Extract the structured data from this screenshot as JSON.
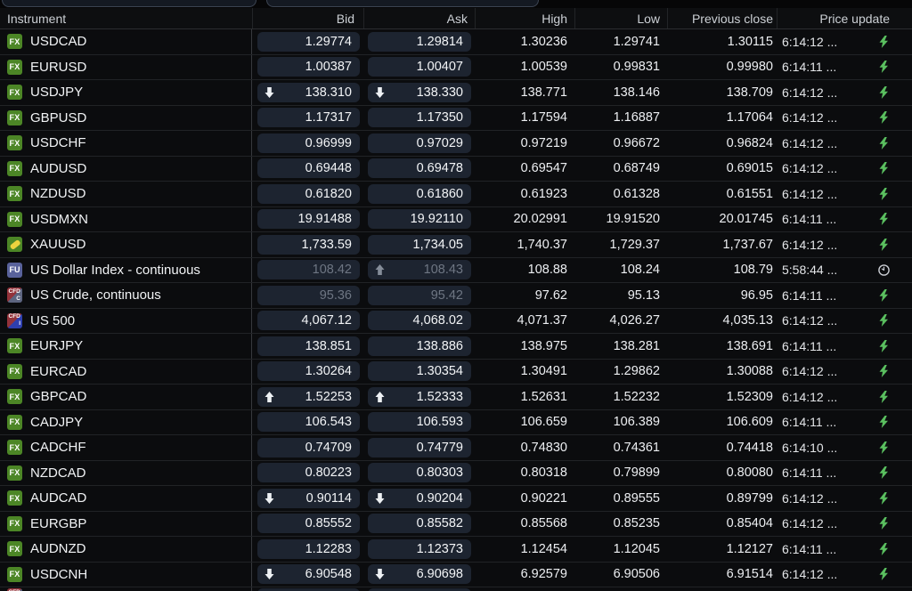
{
  "header": {
    "columns": [
      "Instrument",
      "Bid",
      "Ask",
      "High",
      "Low",
      "Previous close",
      "Price update"
    ]
  },
  "icon_labels": {
    "fx": "FX",
    "futures": "FU",
    "cfd": "CFD",
    "cfd_commodity_suffix": "C",
    "cfd_index_suffix": "I"
  },
  "colors": {
    "fx_icon_green": "#4c8626",
    "gold_bar": "#ecd23e",
    "futures_icon_blue": "#59629b",
    "cfd_red": "#93323a",
    "cfd_index_blue": "#2e3fae",
    "cfd_commodity_gray": "#5d6580",
    "pill_background": "#1d2430",
    "live_bolt_green": "#5abf5f",
    "delayed_clock_gray": "#c9ccd2",
    "muted_price_text": "#6e7683"
  },
  "rows": [
    {
      "type": "fx",
      "name": "USDCAD",
      "bid": "1.29774",
      "ask": "1.29814",
      "bid_arrow": "",
      "ask_arrow": "",
      "high": "1.30236",
      "low": "1.29741",
      "prev": "1.30115",
      "time": "6:14:12 ...",
      "status": "live",
      "muted": false,
      "partial": false
    },
    {
      "type": "fx",
      "name": "EURUSD",
      "bid": "1.00387",
      "ask": "1.00407",
      "bid_arrow": "",
      "ask_arrow": "",
      "high": "1.00539",
      "low": "0.99831",
      "prev": "0.99980",
      "time": "6:14:11 ...",
      "status": "live",
      "muted": false,
      "partial": false
    },
    {
      "type": "fx",
      "name": "USDJPY",
      "bid": "138.310",
      "ask": "138.330",
      "bid_arrow": "down",
      "ask_arrow": "down",
      "high": "138.771",
      "low": "138.146",
      "prev": "138.709",
      "time": "6:14:12 ...",
      "status": "live",
      "muted": false,
      "partial": false
    },
    {
      "type": "fx",
      "name": "GBPUSD",
      "bid": "1.17317",
      "ask": "1.17350",
      "bid_arrow": "",
      "ask_arrow": "",
      "high": "1.17594",
      "low": "1.16887",
      "prev": "1.17064",
      "time": "6:14:12 ...",
      "status": "live",
      "muted": false,
      "partial": false
    },
    {
      "type": "fx",
      "name": "USDCHF",
      "bid": "0.96999",
      "ask": "0.97029",
      "bid_arrow": "",
      "ask_arrow": "",
      "high": "0.97219",
      "low": "0.96672",
      "prev": "0.96824",
      "time": "6:14:12 ...",
      "status": "live",
      "muted": false,
      "partial": false
    },
    {
      "type": "fx",
      "name": "AUDUSD",
      "bid": "0.69448",
      "ask": "0.69478",
      "bid_arrow": "",
      "ask_arrow": "",
      "high": "0.69547",
      "low": "0.68749",
      "prev": "0.69015",
      "time": "6:14:12 ...",
      "status": "live",
      "muted": false,
      "partial": false
    },
    {
      "type": "fx",
      "name": "NZDUSD",
      "bid": "0.61820",
      "ask": "0.61860",
      "bid_arrow": "",
      "ask_arrow": "",
      "high": "0.61923",
      "low": "0.61328",
      "prev": "0.61551",
      "time": "6:14:12 ...",
      "status": "live",
      "muted": false,
      "partial": false
    },
    {
      "type": "fx",
      "name": "USDMXN",
      "bid": "19.91488",
      "ask": "19.92110",
      "bid_arrow": "",
      "ask_arrow": "",
      "high": "20.02991",
      "low": "19.91520",
      "prev": "20.01745",
      "time": "6:14:11 ...",
      "status": "live",
      "muted": false,
      "partial": false
    },
    {
      "type": "gold",
      "name": "XAUUSD",
      "bid": "1,733.59",
      "ask": "1,734.05",
      "bid_arrow": "",
      "ask_arrow": "",
      "high": "1,740.37",
      "low": "1,729.37",
      "prev": "1,737.67",
      "time": "6:14:12 ...",
      "status": "live",
      "muted": false,
      "partial": false
    },
    {
      "type": "futures",
      "name": "US Dollar Index - continuous",
      "bid": "108.42",
      "ask": "108.43",
      "bid_arrow": "",
      "ask_arrow": "up",
      "high": "108.88",
      "low": "108.24",
      "prev": "108.79",
      "time": "5:58:44 ...",
      "status": "delayed",
      "muted": true,
      "partial": false
    },
    {
      "type": "cfd-commodity",
      "name": "US Crude, continuous",
      "bid": "95.36",
      "ask": "95.42",
      "bid_arrow": "",
      "ask_arrow": "",
      "high": "97.62",
      "low": "95.13",
      "prev": "96.95",
      "time": "6:14:11 ...",
      "status": "live",
      "muted": true,
      "partial": false
    },
    {
      "type": "cfd-index",
      "name": "US 500",
      "bid": "4,067.12",
      "ask": "4,068.02",
      "bid_arrow": "",
      "ask_arrow": "",
      "high": "4,071.37",
      "low": "4,026.27",
      "prev": "4,035.13",
      "time": "6:14:12 ...",
      "status": "live",
      "muted": false,
      "partial": false
    },
    {
      "type": "fx",
      "name": "EURJPY",
      "bid": "138.851",
      "ask": "138.886",
      "bid_arrow": "",
      "ask_arrow": "",
      "high": "138.975",
      "low": "138.281",
      "prev": "138.691",
      "time": "6:14:11 ...",
      "status": "live",
      "muted": false,
      "partial": false
    },
    {
      "type": "fx",
      "name": "EURCAD",
      "bid": "1.30264",
      "ask": "1.30354",
      "bid_arrow": "",
      "ask_arrow": "",
      "high": "1.30491",
      "low": "1.29862",
      "prev": "1.30088",
      "time": "6:14:12 ...",
      "status": "live",
      "muted": false,
      "partial": false
    },
    {
      "type": "fx",
      "name": "GBPCAD",
      "bid": "1.52253",
      "ask": "1.52333",
      "bid_arrow": "up",
      "ask_arrow": "up",
      "high": "1.52631",
      "low": "1.52232",
      "prev": "1.52309",
      "time": "6:14:12 ...",
      "status": "live",
      "muted": false,
      "partial": false
    },
    {
      "type": "fx",
      "name": "CADJPY",
      "bid": "106.543",
      "ask": "106.593",
      "bid_arrow": "",
      "ask_arrow": "",
      "high": "106.659",
      "low": "106.389",
      "prev": "106.609",
      "time": "6:14:11 ...",
      "status": "live",
      "muted": false,
      "partial": false
    },
    {
      "type": "fx",
      "name": "CADCHF",
      "bid": "0.74709",
      "ask": "0.74779",
      "bid_arrow": "",
      "ask_arrow": "",
      "high": "0.74830",
      "low": "0.74361",
      "prev": "0.74418",
      "time": "6:14:10 ...",
      "status": "live",
      "muted": false,
      "partial": false
    },
    {
      "type": "fx",
      "name": "NZDCAD",
      "bid": "0.80223",
      "ask": "0.80303",
      "bid_arrow": "",
      "ask_arrow": "",
      "high": "0.80318",
      "low": "0.79899",
      "prev": "0.80080",
      "time": "6:14:11 ...",
      "status": "live",
      "muted": false,
      "partial": false
    },
    {
      "type": "fx",
      "name": "AUDCAD",
      "bid": "0.90114",
      "ask": "0.90204",
      "bid_arrow": "down",
      "ask_arrow": "down",
      "high": "0.90221",
      "low": "0.89555",
      "prev": "0.89799",
      "time": "6:14:12 ...",
      "status": "live",
      "muted": false,
      "partial": false
    },
    {
      "type": "fx",
      "name": "EURGBP",
      "bid": "0.85552",
      "ask": "0.85582",
      "bid_arrow": "",
      "ask_arrow": "",
      "high": "0.85568",
      "low": "0.85235",
      "prev": "0.85404",
      "time": "6:14:12 ...",
      "status": "live",
      "muted": false,
      "partial": false
    },
    {
      "type": "fx",
      "name": "AUDNZD",
      "bid": "1.12283",
      "ask": "1.12373",
      "bid_arrow": "",
      "ask_arrow": "",
      "high": "1.12454",
      "low": "1.12045",
      "prev": "1.12127",
      "time": "6:14:11 ...",
      "status": "live",
      "muted": false,
      "partial": false
    },
    {
      "type": "fx",
      "name": "USDCNH",
      "bid": "6.90548",
      "ask": "6.90698",
      "bid_arrow": "down",
      "ask_arrow": "down",
      "high": "6.92579",
      "low": "6.90506",
      "prev": "6.91514",
      "time": "6:14:12 ...",
      "status": "live",
      "muted": false,
      "partial": false
    },
    {
      "type": "cfd-commodity",
      "name": "",
      "bid": "",
      "ask": "",
      "bid_arrow": "",
      "ask_arrow": "",
      "high": "",
      "low": "",
      "prev": "",
      "time": "",
      "status": "",
      "muted": false,
      "partial": true
    }
  ]
}
